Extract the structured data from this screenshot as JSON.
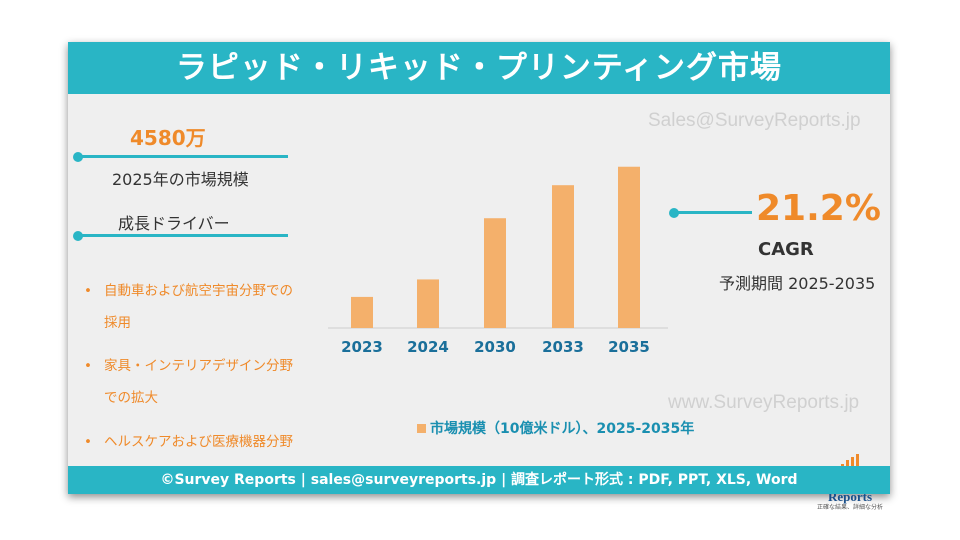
{
  "title": "ラピッド・リキッド・プリンティング市場",
  "watermarks": {
    "top": "Sales@SurveyReports.jp",
    "bottom": "www.SurveyReports.jp"
  },
  "market_size": {
    "value": "4580万",
    "label": "2025年の市場規模"
  },
  "growth_drivers": {
    "heading": "成長ドライバー",
    "items": [
      {
        "line1": "自動車および航空宇宙分野での",
        "line2": "採用"
      },
      {
        "line1": "家具・インテリアデザイン分野",
        "line2": "での拡大"
      },
      {
        "line1": "ヘルスケアおよび医療機器分野",
        "line2": ""
      }
    ]
  },
  "cagr": {
    "value": "21.2%",
    "label": "CAGR",
    "period": "予測期間 2025-2035"
  },
  "chart_data": {
    "type": "bar",
    "categories": [
      "2023",
      "2024",
      "2030",
      "2033",
      "2035"
    ],
    "series": [
      {
        "name": "市場規模（10億米ドル）、2025-2035年",
        "values": [
          32,
          50,
          113,
          147,
          166
        ]
      }
    ],
    "ylim": [
      0,
      175
    ],
    "grid": false,
    "legend": "bottom",
    "bar_color": "#f4b06b"
  },
  "logo": {
    "name": "Survey Reports",
    "tagline": "正確な結果、詳細な分析"
  },
  "footer": "©Survey Reports | sales@surveyreports.jp |  調査レポート形式 : PDF, PPT, XLS, Word",
  "colors": {
    "accent": "#29b5c5",
    "highlight": "#ef8a2a",
    "bar": "#f4b06b"
  }
}
